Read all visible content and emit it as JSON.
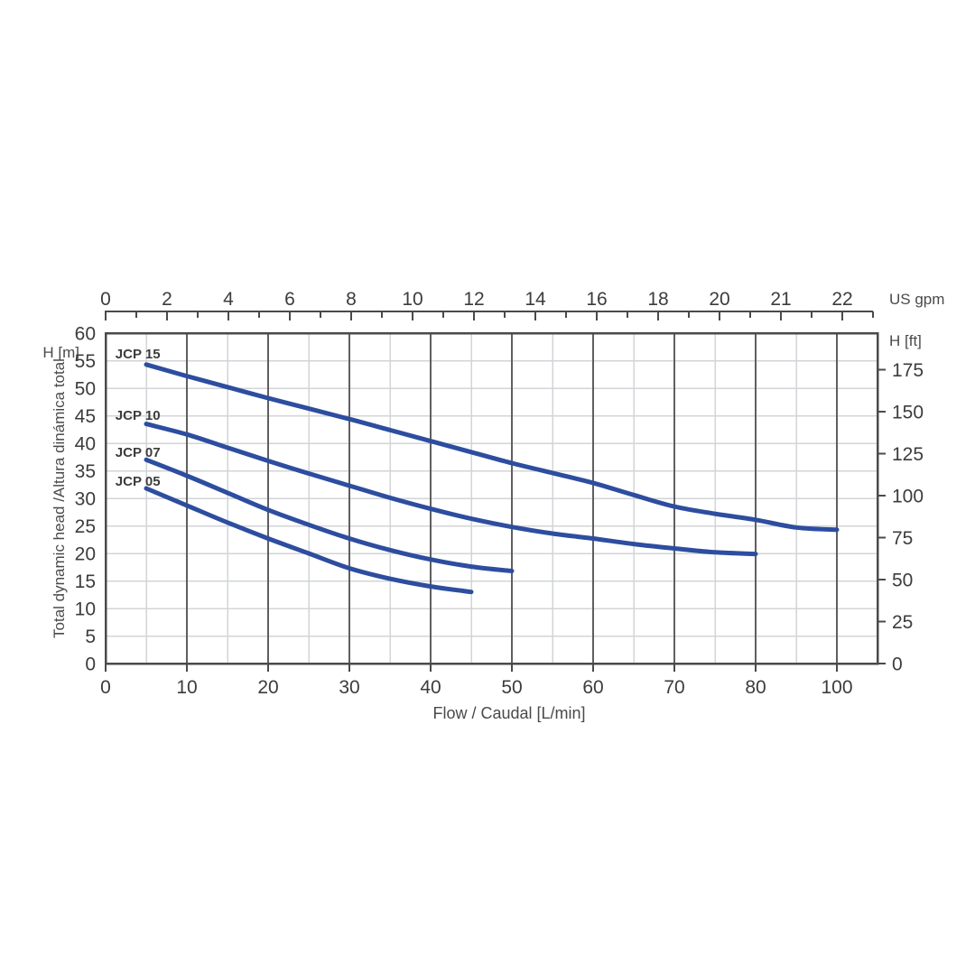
{
  "page": {
    "background": "#ffffff"
  },
  "chart_data": {
    "type": "line",
    "title": "",
    "xlabel": "Flow / Caudal [L/min]",
    "ylabel": "Total dynamic head /Altura dinámica total",
    "top_axis": {
      "unit_label": "US gpm",
      "tick_labels": [
        "0",
        "2",
        "4",
        "6",
        "8",
        "10",
        "12",
        "14",
        "16",
        "18",
        "20",
        "21",
        "22"
      ]
    },
    "bottom_axis": {
      "tick_values": [
        0,
        10,
        20,
        30,
        40,
        50,
        60,
        70,
        80,
        100
      ],
      "tick_labels": [
        "0",
        "10",
        "20",
        "30",
        "40",
        "50",
        "60",
        "70",
        "80",
        "100"
      ]
    },
    "left_axis": {
      "unit_label": "H [m]",
      "min": 0,
      "max": 60,
      "step": 5
    },
    "right_axis": {
      "unit_label": "H [ft]",
      "tick_values": [
        175,
        150,
        125,
        100,
        75,
        50,
        25,
        0
      ]
    },
    "grid": {
      "x_minor_step": 5,
      "y_minor_step": 5
    },
    "legend_position": "inline-curve-labels",
    "series": [
      {
        "name": "JCP 15",
        "label_pos": [
          1.2,
          56.2
        ],
        "points": [
          [
            5,
            54.3
          ],
          [
            10,
            52.2
          ],
          [
            15,
            50.2
          ],
          [
            20,
            48.2
          ],
          [
            25,
            46.3
          ],
          [
            30,
            44.4
          ],
          [
            35,
            42.4
          ],
          [
            40,
            40.4
          ],
          [
            45,
            38.4
          ],
          [
            50,
            36.4
          ],
          [
            55,
            34.6
          ],
          [
            60,
            32.8
          ],
          [
            65,
            30.6
          ],
          [
            70,
            28.5
          ],
          [
            75,
            27.2
          ],
          [
            80,
            26.1
          ],
          [
            90,
            24.7
          ],
          [
            100,
            24.3
          ]
        ]
      },
      {
        "name": "JCP 10",
        "label_pos": [
          1.2,
          45.1
        ],
        "points": [
          [
            5,
            43.5
          ],
          [
            10,
            41.6
          ],
          [
            15,
            39.2
          ],
          [
            20,
            36.8
          ],
          [
            25,
            34.5
          ],
          [
            30,
            32.3
          ],
          [
            35,
            30.1
          ],
          [
            40,
            28.1
          ],
          [
            45,
            26.3
          ],
          [
            50,
            24.8
          ],
          [
            55,
            23.6
          ],
          [
            60,
            22.7
          ],
          [
            65,
            21.7
          ],
          [
            70,
            20.9
          ],
          [
            75,
            20.2
          ],
          [
            80,
            19.9
          ]
        ]
      },
      {
        "name": "JCP 07",
        "label_pos": [
          1.2,
          38.4
        ],
        "points": [
          [
            5,
            37.0
          ],
          [
            10,
            34.1
          ],
          [
            15,
            31.0
          ],
          [
            20,
            27.9
          ],
          [
            25,
            25.2
          ],
          [
            30,
            22.7
          ],
          [
            35,
            20.6
          ],
          [
            40,
            18.9
          ],
          [
            45,
            17.6
          ],
          [
            50,
            16.8
          ]
        ]
      },
      {
        "name": "JCP 05",
        "label_pos": [
          1.2,
          33.1
        ],
        "points": [
          [
            5,
            31.8
          ],
          [
            10,
            28.7
          ],
          [
            15,
            25.6
          ],
          [
            20,
            22.7
          ],
          [
            25,
            20.0
          ],
          [
            30,
            17.3
          ],
          [
            35,
            15.4
          ],
          [
            40,
            14.0
          ],
          [
            45,
            13.0
          ]
        ]
      }
    ],
    "colors": {
      "curve": "#2d4d9f",
      "grid_light": "#d2d4d7",
      "grid_dark": "#5f5f5f",
      "border": "#4a4a4a",
      "text": "#3c3c3c",
      "unit_text": "#4a4a4a"
    }
  }
}
